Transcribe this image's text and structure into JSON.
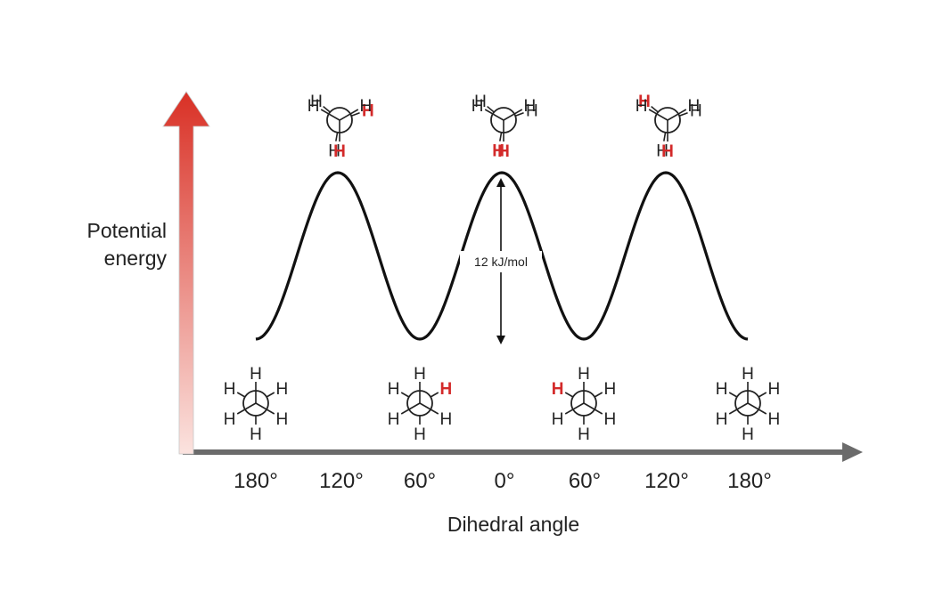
{
  "chart_data": {
    "type": "line",
    "xlabel": "Dihedral angle",
    "ylabel_lines": [
      "Potential",
      "energy"
    ],
    "x_ticks": [
      "180°",
      "120°",
      "60°",
      "0°",
      "60°",
      "120°",
      "180°"
    ],
    "series": [
      {
        "values": [
          0,
          12,
          0,
          12,
          0,
          12,
          0
        ]
      }
    ],
    "ylim": [
      0,
      12
    ],
    "annotation": "12 kJ/mol",
    "atom_label": "H",
    "colors": {
      "curve": "#111111",
      "highlight": "#d32a2a",
      "x_axis": "#6b6b6b",
      "y_axis_top": "#d93025",
      "y_axis_bottom": "#fbe3df"
    },
    "projections": {
      "staggered": [
        {
          "angle": 180,
          "front": [
            0,
            120,
            240
          ],
          "back": [
            60,
            180,
            300
          ],
          "red_front": 180,
          "red_back": 0
        },
        {
          "angle": 60,
          "front": [
            0,
            120,
            240
          ],
          "back": [
            60,
            180,
            300
          ],
          "red_front": 180,
          "red_back": 60
        },
        {
          "angle": 60,
          "front": [
            0,
            120,
            240
          ],
          "back": [
            60,
            180,
            300
          ],
          "red_front": 180,
          "red_back": 300
        },
        {
          "angle": 180,
          "front": [
            0,
            120,
            240
          ],
          "back": [
            60,
            180,
            300
          ],
          "red_front": 180,
          "red_back": 0
        }
      ],
      "eclipsed": [
        {
          "angle": 120,
          "front": [
            180,
            300,
            60
          ],
          "back": [
            190,
            310,
            70
          ],
          "red_front": 180,
          "red_back": 70
        },
        {
          "angle": 0,
          "front": [
            180,
            300,
            60
          ],
          "back": [
            190,
            310,
            70
          ],
          "red_front": 180,
          "red_back": 190
        },
        {
          "angle": 120,
          "front": [
            180,
            300,
            60
          ],
          "back": [
            190,
            310,
            70
          ],
          "red_front": 180,
          "red_back": 310
        }
      ]
    }
  }
}
